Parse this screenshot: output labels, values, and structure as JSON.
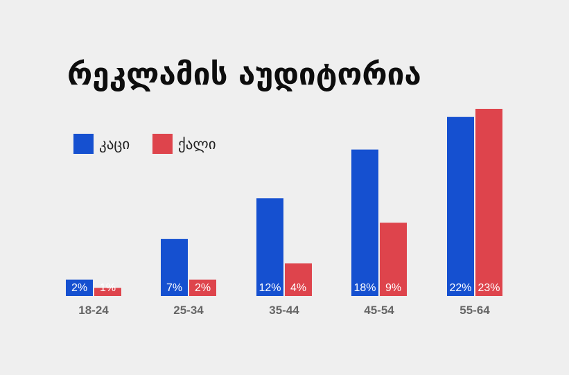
{
  "chart_data": {
    "type": "bar",
    "title": "რეკლამის აუდიტორია",
    "categories": [
      "18-24",
      "25-34",
      "35-44",
      "45-54",
      "55-64"
    ],
    "series": [
      {
        "name": "კაცი",
        "color": "#1550d0",
        "values": [
          2,
          7,
          12,
          18,
          22
        ],
        "labels": [
          "2%",
          "7%",
          "12%",
          "18%",
          "22%"
        ]
      },
      {
        "name": "ქალი",
        "color": "#de444c",
        "values": [
          1,
          2,
          4,
          9,
          23
        ],
        "labels": [
          "1%",
          "2%",
          "4%",
          "9%",
          "23%"
        ]
      }
    ],
    "ylim": [
      0,
      23
    ],
    "legend_position": "top-left",
    "grid": false
  }
}
